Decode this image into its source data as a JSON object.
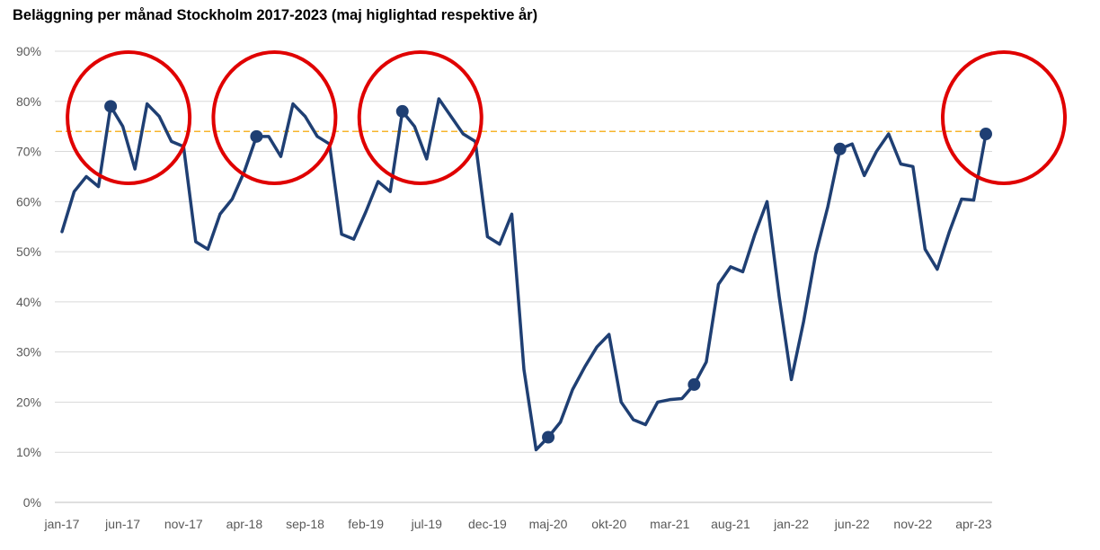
{
  "chart_data": {
    "type": "line",
    "title": "Beläggning per månad Stockholm 2017-2023 (maj higlightad respektive år)",
    "xlabel": "",
    "ylabel": "",
    "ylim": [
      0,
      0.9
    ],
    "y_ticks": [
      0,
      0.1,
      0.2,
      0.3,
      0.4,
      0.5,
      0.6,
      0.7,
      0.8,
      0.9
    ],
    "y_tick_labels": [
      "0%",
      "10%",
      "20%",
      "30%",
      "40%",
      "50%",
      "60%",
      "70%",
      "80%",
      "90%"
    ],
    "x_tick_labels": [
      "jan-17",
      "jun-17",
      "nov-17",
      "apr-18",
      "sep-18",
      "feb-19",
      "jul-19",
      "dec-19",
      "maj-20",
      "okt-20",
      "mar-21",
      "aug-21",
      "jan-22",
      "jun-22",
      "nov-22",
      "apr-23"
    ],
    "x_tick_every": 5,
    "grid": true,
    "line_color": "#1F3F73",
    "reference_line": {
      "value": 0.74,
      "color": "#F7B52C",
      "style": "dashed"
    },
    "highlight_color": "#E00000",
    "series": [
      {
        "name": "",
        "values": [
          0.54,
          0.62,
          0.65,
          0.63,
          0.79,
          0.75,
          0.665,
          0.795,
          0.77,
          0.72,
          0.71,
          0.52,
          0.505,
          0.575,
          0.605,
          0.66,
          0.73,
          0.73,
          0.69,
          0.795,
          0.77,
          0.73,
          0.715,
          0.535,
          0.525,
          0.58,
          0.64,
          0.62,
          0.78,
          0.75,
          0.685,
          0.805,
          0.77,
          0.735,
          0.72,
          0.53,
          0.515,
          0.575,
          0.265,
          0.105,
          0.13,
          0.16,
          0.225,
          0.27,
          0.31,
          0.335,
          0.2,
          0.165,
          0.155,
          0.2,
          0.205,
          0.207,
          0.235,
          0.28,
          0.435,
          0.47,
          0.46,
          0.535,
          0.6,
          0.41,
          0.245,
          0.36,
          0.495,
          0.59,
          0.705,
          0.715,
          0.652,
          0.7,
          0.735,
          0.675,
          0.67,
          0.505,
          0.465,
          0.54,
          0.605,
          0.603,
          0.735
        ]
      }
    ],
    "highlighted_points": [
      {
        "label": "maj-17",
        "index": 4,
        "value": 0.79,
        "circled": true
      },
      {
        "label": "maj-18",
        "index": 16,
        "value": 0.73,
        "circled": true
      },
      {
        "label": "maj-19",
        "index": 28,
        "value": 0.78,
        "circled": true
      },
      {
        "label": "maj-20",
        "index": 40,
        "value": 0.13,
        "circled": false
      },
      {
        "label": "maj-21",
        "index": 52,
        "value": 0.235,
        "circled": false
      },
      {
        "label": "maj-22",
        "index": 64,
        "value": 0.705,
        "circled": false
      },
      {
        "label": "maj-23",
        "index": 76,
        "value": 0.735,
        "circled": true
      }
    ]
  }
}
